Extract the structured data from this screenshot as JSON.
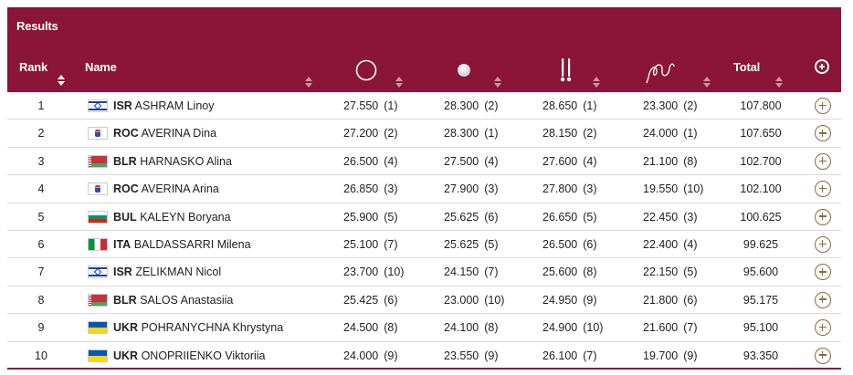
{
  "title": "Results",
  "columns": {
    "rank": "Rank",
    "name": "Name",
    "total": "Total",
    "apparatus": [
      {
        "icon": "hoop-icon"
      },
      {
        "icon": "ball-icon"
      },
      {
        "icon": "clubs-icon"
      },
      {
        "icon": "ribbon-icon"
      }
    ]
  },
  "colors": {
    "header": "#8a1538",
    "plus": "#8c6a3b"
  },
  "rows": [
    {
      "rank": "1",
      "noc": "ISR",
      "flag": "isr",
      "name": "ASHRAM Linoy",
      "scores": [
        [
          "27.550",
          "(1)"
        ],
        [
          "28.300",
          "(2)"
        ],
        [
          "28.650",
          "(1)"
        ],
        [
          "23.300",
          "(2)"
        ]
      ],
      "total": "107.800"
    },
    {
      "rank": "2",
      "noc": "ROC",
      "flag": "roc",
      "name": "AVERINA Dina",
      "scores": [
        [
          "27.200",
          "(2)"
        ],
        [
          "28.300",
          "(1)"
        ],
        [
          "28.150",
          "(2)"
        ],
        [
          "24.000",
          "(1)"
        ]
      ],
      "total": "107.650"
    },
    {
      "rank": "3",
      "noc": "BLR",
      "flag": "blr",
      "name": "HARNASKO Alina",
      "scores": [
        [
          "26.500",
          "(4)"
        ],
        [
          "27.500",
          "(4)"
        ],
        [
          "27.600",
          "(4)"
        ],
        [
          "21.100",
          "(8)"
        ]
      ],
      "total": "102.700"
    },
    {
      "rank": "4",
      "noc": "ROC",
      "flag": "roc",
      "name": "AVERINA Arina",
      "scores": [
        [
          "26.850",
          "(3)"
        ],
        [
          "27.900",
          "(3)"
        ],
        [
          "27.800",
          "(3)"
        ],
        [
          "19.550",
          "(10)"
        ]
      ],
      "total": "102.100"
    },
    {
      "rank": "5",
      "noc": "BUL",
      "flag": "bul",
      "name": "KALEYN Boryana",
      "scores": [
        [
          "25.900",
          "(5)"
        ],
        [
          "25.625",
          "(6)"
        ],
        [
          "26.650",
          "(5)"
        ],
        [
          "22.450",
          "(3)"
        ]
      ],
      "total": "100.625"
    },
    {
      "rank": "6",
      "noc": "ITA",
      "flag": "ita",
      "name": "BALDASSARRI Milena",
      "scores": [
        [
          "25.100",
          "(7)"
        ],
        [
          "25.625",
          "(5)"
        ],
        [
          "26.500",
          "(6)"
        ],
        [
          "22.400",
          "(4)"
        ]
      ],
      "total": "99.625"
    },
    {
      "rank": "7",
      "noc": "ISR",
      "flag": "isr",
      "name": "ZELIKMAN Nicol",
      "scores": [
        [
          "23.700",
          "(10)"
        ],
        [
          "24.150",
          "(7)"
        ],
        [
          "25.600",
          "(8)"
        ],
        [
          "22.150",
          "(5)"
        ]
      ],
      "total": "95.600"
    },
    {
      "rank": "8",
      "noc": "BLR",
      "flag": "blr",
      "name": "SALOS Anastasiia",
      "scores": [
        [
          "25.425",
          "(6)"
        ],
        [
          "23.000",
          "(10)"
        ],
        [
          "24.950",
          "(9)"
        ],
        [
          "21.800",
          "(6)"
        ]
      ],
      "total": "95.175"
    },
    {
      "rank": "9",
      "noc": "UKR",
      "flag": "ukr",
      "name": "POHRANYCHNA Khrystyna",
      "scores": [
        [
          "24.500",
          "(8)"
        ],
        [
          "24.100",
          "(8)"
        ],
        [
          "24.900",
          "(10)"
        ],
        [
          "21.600",
          "(7)"
        ]
      ],
      "total": "95.100"
    },
    {
      "rank": "10",
      "noc": "UKR",
      "flag": "ukr",
      "name": "ONOPRIIENKO Viktoriia",
      "scores": [
        [
          "24.000",
          "(9)"
        ],
        [
          "23.550",
          "(9)"
        ],
        [
          "26.100",
          "(7)"
        ],
        [
          "19.700",
          "(9)"
        ]
      ],
      "total": "93.350"
    }
  ]
}
